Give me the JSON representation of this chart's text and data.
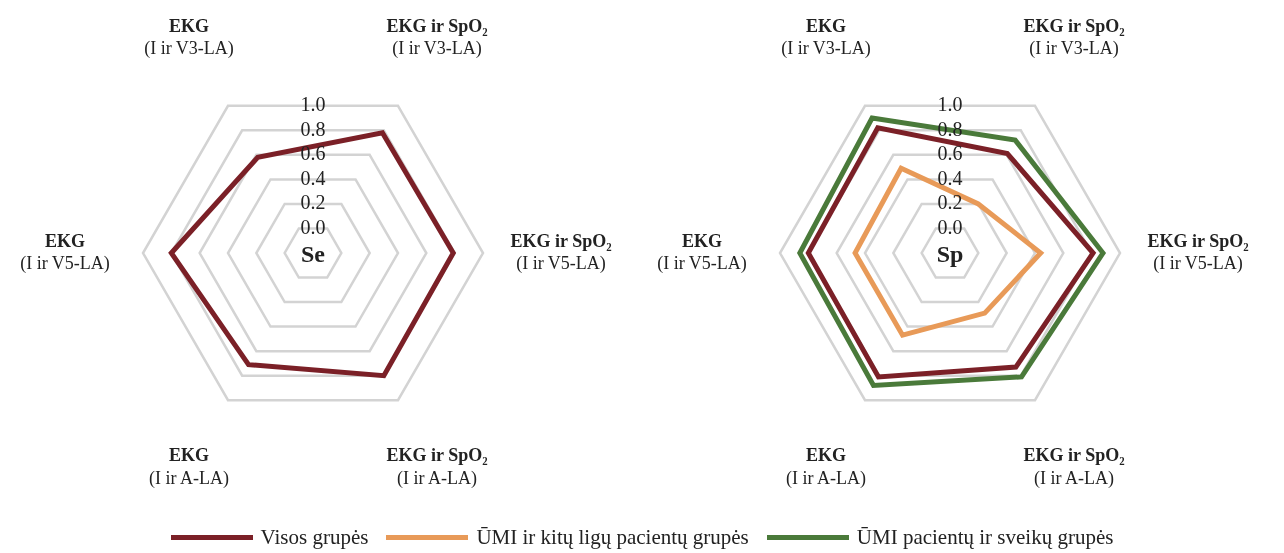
{
  "chart_data": [
    {
      "type": "radar",
      "title": "Se",
      "categories": [
        "EKG ir SpO₂\n(I ir V3-LA)",
        "EKG ir SpO₂\n(I ir V5-LA)",
        "EKG ir SpO₂\n(I ir A-LA)",
        "EKG\n(I ir A-LA)",
        "EKG\n(I ir V5-LA)",
        "EKG\n(I ir V3-LA)"
      ],
      "ylim": [
        -0.2,
        1.0
      ],
      "yticks": [
        {
          "value": 0,
          "label": "0.0"
        },
        {
          "value": 0.2,
          "label": "0.2"
        },
        {
          "value": 0.4,
          "label": "0.4"
        },
        {
          "value": 0.6,
          "label": "0.6"
        },
        {
          "value": 0.8,
          "label": "0.8"
        },
        {
          "value": 1,
          "label": "1.0"
        }
      ],
      "grid": true,
      "legend": "bottom",
      "series": [
        {
          "name": "Visos grupės",
          "color": "#7b2027",
          "values": [
            0.78,
            0.79,
            0.8,
            0.71,
            0.8,
            0.58
          ]
        }
      ]
    },
    {
      "type": "radar",
      "title": "Sp",
      "categories": [
        "EKG ir SpO₂\n(I ir V3-LA)",
        "EKG ir SpO₂\n(I ir V5-LA)",
        "EKG ir SpO₂\n(I ir A-LA)",
        "EKG\n(I ir A-LA)",
        "EKG\n(I ir V5-LA)",
        "EKG\n(I ir V3-LA)"
      ],
      "ylim": [
        -0.2,
        1.0
      ],
      "yticks": [
        {
          "value": 0,
          "label": "0.0"
        },
        {
          "value": 0.2,
          "label": "0.2"
        },
        {
          "value": 0.4,
          "label": "0.4"
        },
        {
          "value": 0.6,
          "label": "0.6"
        },
        {
          "value": 0.8,
          "label": "0.8"
        },
        {
          "value": 1,
          "label": "1.0"
        }
      ],
      "grid": true,
      "legend": "bottom",
      "series": [
        {
          "name": "Visos grupės",
          "color": "#7b2027",
          "values": [
            0.61,
            0.81,
            0.73,
            0.81,
            0.8,
            0.82
          ]
        },
        {
          "name": "ŪMI ir kitų ligų pacientų grupės",
          "color": "#e89a58",
          "values": [
            0.2,
            0.44,
            0.29,
            0.47,
            0.47,
            0.49
          ]
        },
        {
          "name": "ŪMI pacientų ir sveikų grupės",
          "color": "#4a7a3a",
          "values": [
            0.72,
            0.88,
            0.81,
            0.88,
            0.86,
            0.9
          ]
        }
      ]
    }
  ]
}
